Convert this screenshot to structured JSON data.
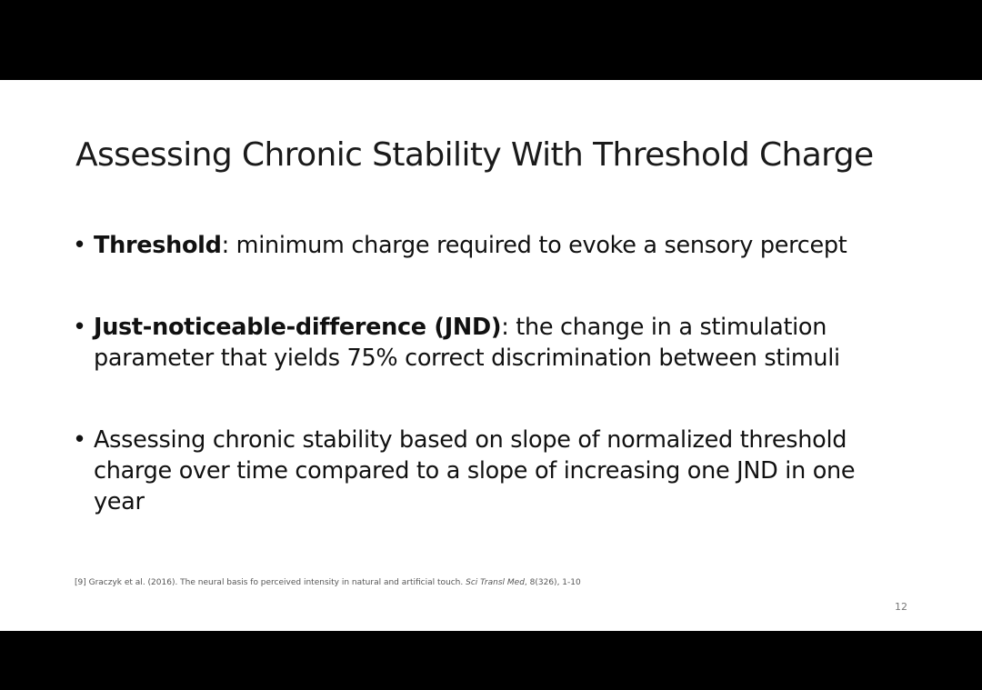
{
  "slide": {
    "title": "Assessing Chronic Stability With Threshold Charge",
    "bullet_symbol": "•",
    "bullets": [
      {
        "term": "Threshold",
        "text": ": minimum charge required to evoke a sensory percept"
      },
      {
        "term": "Just-noticeable-difference (JND)",
        "text": ": the change in a stimulation parameter that yields 75% correct discrimination between stimuli"
      },
      {
        "term": "",
        "text": "Assessing chronic stability based on slope of normalized threshold charge over time compared to a slope of increasing one JND in one year"
      }
    ],
    "footnote": {
      "prefix": "[9] Graczyk et al. (2016). The neural basis fo perceived intensity in natural and artificial touch. ",
      "journal": "Sci Transl Med",
      "suffix": ", 8(326), 1-10"
    },
    "page_number": "12"
  }
}
